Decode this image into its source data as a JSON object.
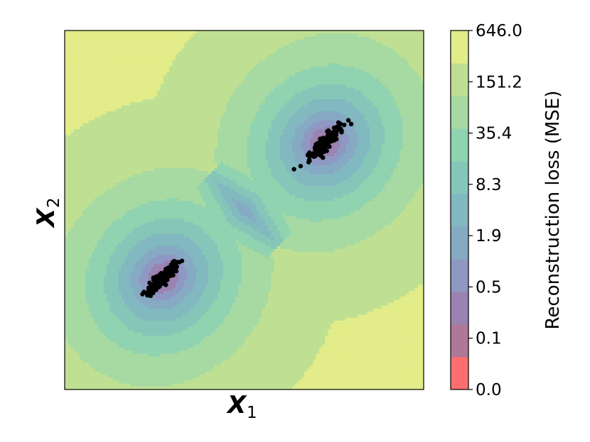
{
  "chart_data": {
    "type": "contour",
    "xlabel": "X",
    "xlabel_subscript": "1",
    "ylabel": "X",
    "ylabel_subscript": "2",
    "x_ticks_shown": false,
    "y_ticks_shown": false,
    "colorbar": {
      "label": "Reconstruction loss (MSE)",
      "tick_labels": [
        "646.0",
        "151.2",
        "35.4",
        "8.3",
        "1.9",
        "0.5",
        "0.1",
        "0.0"
      ],
      "levels": [
        0.0,
        0.1,
        0.5,
        1.9,
        8.3,
        35.4,
        151.2,
        646.0
      ],
      "colormap": [
        "#ff6e6e",
        "#b07898",
        "#9a82b2",
        "#8e98c2",
        "#86a9c4",
        "#82b8c0",
        "#86c6b8",
        "#90d3b0",
        "#a6daa2",
        "#bfe092",
        "#e2ec88"
      ]
    },
    "clusters": [
      {
        "center": [
          -0.9,
          -0.75
        ],
        "direction": [
          0.707,
          0.707
        ],
        "spread_major": 0.13,
        "spread_minor": 0.03,
        "n": 150
      },
      {
        "center": [
          0.9,
          0.75
        ],
        "direction": [
          0.707,
          0.707
        ],
        "spread_major": 0.13,
        "spread_minor": 0.03,
        "n": 150
      }
    ],
    "xlim": [
      -2.0,
      2.0
    ],
    "ylim": [
      -2.0,
      2.0
    ],
    "point_color": "#000000"
  }
}
